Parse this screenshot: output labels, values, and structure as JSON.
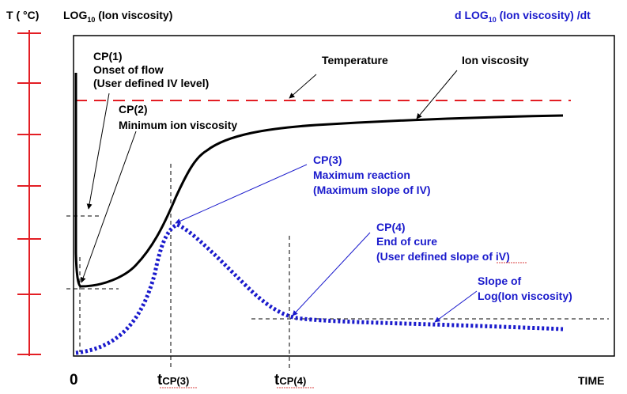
{
  "axes": {
    "temp_label": "T ( °C)",
    "left_label_main": "LOG",
    "left_label_sub": "10",
    "left_label_rest": " (Ion viscosity)",
    "right_label_main": "d LOG",
    "right_label_sub": "10",
    "right_label_rest": " (Ion viscosity) /dt",
    "zero_label": "0",
    "time_label": "TIME",
    "tick1_main": "t",
    "tick1_sub": "CP(3)",
    "tick2_main": "t",
    "tick2_sub": "CP(4)"
  },
  "annotations": {
    "cp1": [
      "CP(1)",
      "Onset of flow",
      "(User defined IV level)"
    ],
    "cp2": [
      "CP(2)",
      "Minimum ion viscosity"
    ],
    "cp3": [
      "CP(3)",
      "Maximum reaction",
      "(Maximum slope of IV)"
    ],
    "cp4": [
      "CP(4)",
      "End of cure",
      "(User defined slope of iV)"
    ],
    "slope": [
      "Slope of",
      "Log(Ion viscosity)"
    ],
    "temperature": "Temperature",
    "ion_viscosity": "Ion viscosity"
  },
  "colors": {
    "temperature": "#e31e24",
    "ion_viscosity": "#000000",
    "slope": "#1a1acc",
    "blue_text": "#1a1acc"
  }
}
